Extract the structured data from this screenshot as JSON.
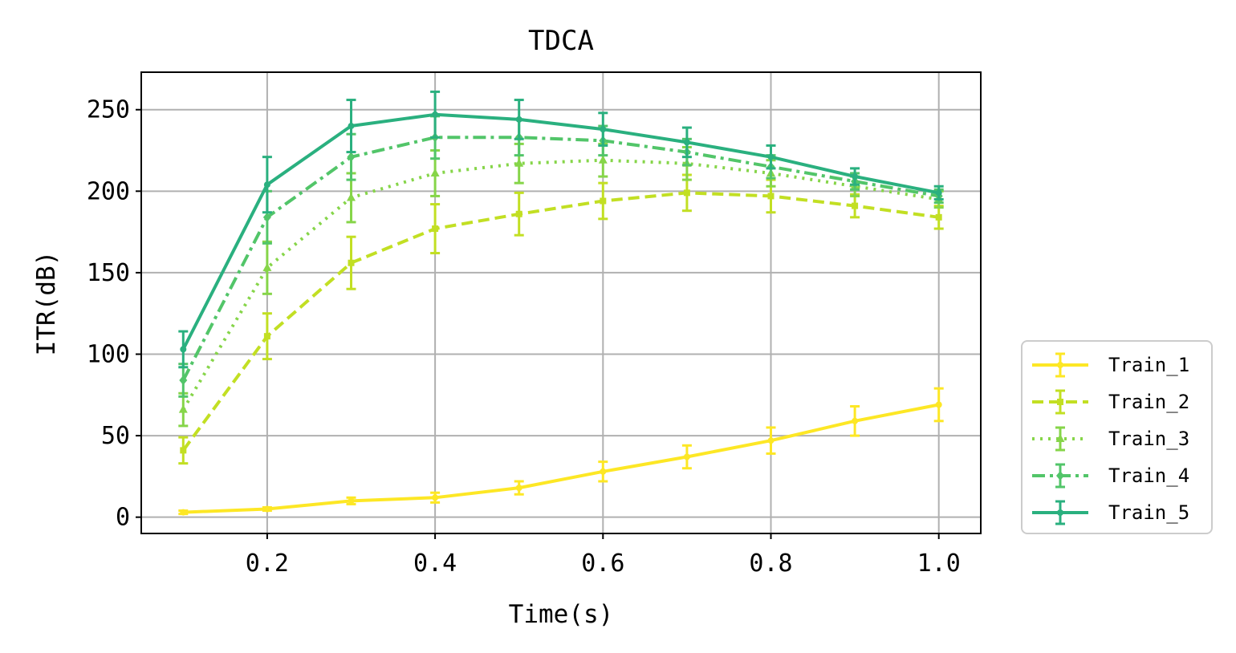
{
  "chart_data": {
    "type": "line",
    "title": "TDCA",
    "xlabel": "Time(s)",
    "ylabel": "ITR(dB)",
    "xlim": [
      0.05,
      1.05
    ],
    "ylim": [
      -10,
      273
    ],
    "x": [
      0.1,
      0.2,
      0.3,
      0.4,
      0.5,
      0.6,
      0.7,
      0.8,
      0.9,
      1.0
    ],
    "xticks": [
      0.2,
      0.4,
      0.6,
      0.8,
      1.0
    ],
    "xtick_labels": [
      "0.2",
      "0.4",
      "0.6",
      "0.8",
      "1.0"
    ],
    "yticks": [
      0,
      50,
      100,
      150,
      200,
      250
    ],
    "ytick_labels": [
      "0",
      "50",
      "100",
      "150",
      "200",
      "250"
    ],
    "grid": true,
    "legend_position": "outside-right-bottom",
    "series": [
      {
        "name": "Train_1",
        "color": "#fde725",
        "linestyle": "solid",
        "marker": "point",
        "values": [
          3,
          5,
          10,
          12,
          18,
          28,
          37,
          47,
          59,
          69
        ],
        "errors": [
          1,
          1,
          2,
          3,
          4,
          6,
          7,
          8,
          9,
          10
        ]
      },
      {
        "name": "Train_2",
        "color": "#c2df23",
        "linestyle": "dashed",
        "marker": "square",
        "values": [
          41,
          111,
          156,
          177,
          186,
          194,
          199,
          197,
          191,
          184
        ],
        "errors": [
          8,
          14,
          16,
          15,
          13,
          11,
          11,
          10,
          7,
          7
        ]
      },
      {
        "name": "Train_3",
        "color": "#86d549",
        "linestyle": "dotted",
        "marker": "triangle",
        "values": [
          66,
          153,
          196,
          211,
          217,
          219,
          217,
          211,
          203,
          195
        ],
        "errors": [
          10,
          16,
          15,
          14,
          12,
          10,
          10,
          8,
          6,
          5
        ]
      },
      {
        "name": "Train_4",
        "color": "#52c569",
        "linestyle": "dashdot",
        "marker": "diamond",
        "values": [
          84,
          184,
          221,
          233,
          233,
          231,
          224,
          215,
          206,
          197
        ],
        "errors": [
          10,
          16,
          14,
          13,
          11,
          9,
          8,
          7,
          5,
          4
        ]
      },
      {
        "name": "Train_5",
        "color": "#2ab07f",
        "linestyle": "solid",
        "marker": "point",
        "values": [
          103,
          204,
          240,
          247,
          244,
          238,
          230,
          221,
          209,
          199
        ],
        "errors": [
          11,
          17,
          16,
          14,
          12,
          10,
          9,
          7,
          5,
          4
        ]
      }
    ]
  }
}
